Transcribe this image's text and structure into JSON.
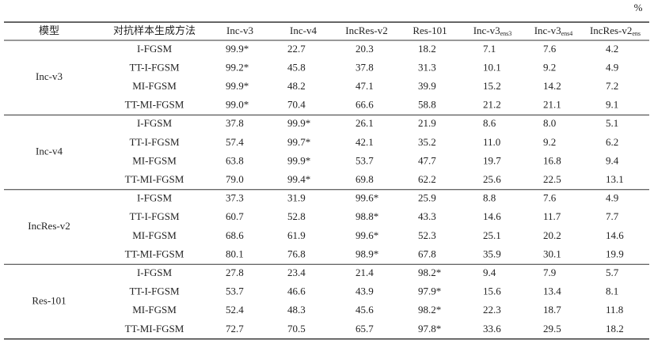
{
  "header": {
    "unit": "%",
    "columns": [
      {
        "text": "模型"
      },
      {
        "text": "对抗样本生成方法"
      },
      {
        "text": "Inc-v3"
      },
      {
        "text": "Inc-v4"
      },
      {
        "text": "IncRes-v2"
      },
      {
        "text": "Res-101"
      },
      {
        "text": "Inc-v3",
        "sub": "ens3"
      },
      {
        "text": "Inc-v3",
        "sub": "ens4"
      },
      {
        "text": "IncRes-v2",
        "sub": "ens"
      }
    ]
  },
  "table": {
    "groups": [
      {
        "model": "Inc-v3",
        "rows": [
          {
            "method": "I-FGSM",
            "values": [
              "99.9*",
              "22.7",
              "20.3",
              "18.2",
              "7.1",
              "7.6",
              "4.2"
            ]
          },
          {
            "method": "TT-I-FGSM",
            "values": [
              "99.2*",
              "45.8",
              "37.8",
              "31.3",
              "10.1",
              "9.2",
              "4.9"
            ]
          },
          {
            "method": "MI-FGSM",
            "values": [
              "99.9*",
              "48.2",
              "47.1",
              "39.9",
              "15.2",
              "14.2",
              "7.2"
            ]
          },
          {
            "method": "TT-MI-FGSM",
            "values": [
              "99.0*",
              "70.4",
              "66.6",
              "58.8",
              "21.2",
              "21.1",
              "9.1"
            ]
          }
        ]
      },
      {
        "model": "Inc-v4",
        "rows": [
          {
            "method": "I-FGSM",
            "values": [
              "37.8",
              "99.9*",
              "26.1",
              "21.9",
              "8.6",
              "8.0",
              "5.1"
            ]
          },
          {
            "method": "TT-I-FGSM",
            "values": [
              "57.4",
              "99.7*",
              "42.1",
              "35.2",
              "11.0",
              "9.2",
              "6.2"
            ]
          },
          {
            "method": "MI-FGSM",
            "values": [
              "63.8",
              "99.9*",
              "53.7",
              "47.7",
              "19.7",
              "16.8",
              "9.4"
            ]
          },
          {
            "method": "TT-MI-FGSM",
            "values": [
              "79.0",
              "99.4*",
              "69.8",
              "62.2",
              "25.6",
              "22.5",
              "13.1"
            ]
          }
        ]
      },
      {
        "model": "IncRes-v2",
        "rows": [
          {
            "method": "I-FGSM",
            "values": [
              "37.3",
              "31.9",
              "99.6*",
              "25.9",
              "8.8",
              "7.6",
              "4.9"
            ]
          },
          {
            "method": "TT-I-FGSM",
            "values": [
              "60.7",
              "52.8",
              "98.8*",
              "43.3",
              "14.6",
              "11.7",
              "7.7"
            ]
          },
          {
            "method": "MI-FGSM",
            "values": [
              "68.6",
              "61.9",
              "99.6*",
              "52.3",
              "25.1",
              "20.2",
              "14.6"
            ]
          },
          {
            "method": "TT-MI-FGSM",
            "values": [
              "80.1",
              "76.8",
              "98.9*",
              "67.8",
              "35.9",
              "30.1",
              "19.9"
            ]
          }
        ]
      },
      {
        "model": "Res-101",
        "rows": [
          {
            "method": "I-FGSM",
            "values": [
              "27.8",
              "23.4",
              "21.4",
              "98.2*",
              "9.4",
              "7.9",
              "5.7"
            ]
          },
          {
            "method": "TT-I-FGSM",
            "values": [
              "53.7",
              "46.6",
              "43.9",
              "97.9*",
              "15.6",
              "13.4",
              "8.1"
            ]
          },
          {
            "method": "MI-FGSM",
            "values": [
              "52.4",
              "48.3",
              "45.6",
              "98.2*",
              "22.3",
              "18.7",
              "11.8"
            ]
          },
          {
            "method": "TT-MI-FGSM",
            "values": [
              "72.7",
              "70.5",
              "65.7",
              "97.8*",
              "33.6",
              "29.5",
              "18.2"
            ]
          }
        ]
      }
    ]
  }
}
